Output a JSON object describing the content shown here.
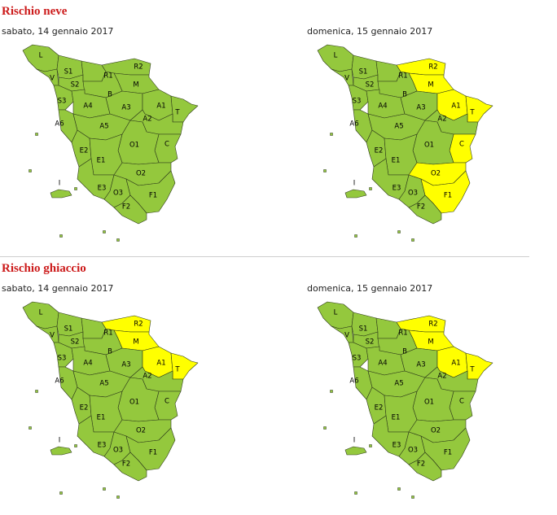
{
  "zone_labels": [
    "L",
    "V",
    "S1",
    "S2",
    "R1",
    "R2",
    "M",
    "B",
    "S3",
    "A4",
    "A3",
    "A1",
    "T",
    "A2",
    "A6",
    "A5",
    "C",
    "O1",
    "E2",
    "E1",
    "O2",
    "E3",
    "O3",
    "F1",
    "F2",
    "I"
  ],
  "colors": {
    "normal": "#94c83d",
    "alert": "#ffff00"
  },
  "sections": [
    {
      "title": "Rischio neve",
      "maps": [
        {
          "date": "sabato, 14 gennaio 2017",
          "alert_zones": []
        },
        {
          "date": "domenica, 15 gennaio 2017",
          "alert_zones": [
            "R2",
            "M",
            "A1",
            "T",
            "C",
            "O2",
            "F1"
          ]
        }
      ]
    },
    {
      "title": "Rischio ghiaccio",
      "maps": [
        {
          "date": "sabato, 14 gennaio 2017",
          "alert_zones": [
            "R2",
            "M",
            "A1",
            "T"
          ]
        },
        {
          "date": "domenica, 15 gennaio 2017",
          "alert_zones": [
            "R2",
            "M",
            "A1",
            "T"
          ]
        }
      ]
    }
  ]
}
